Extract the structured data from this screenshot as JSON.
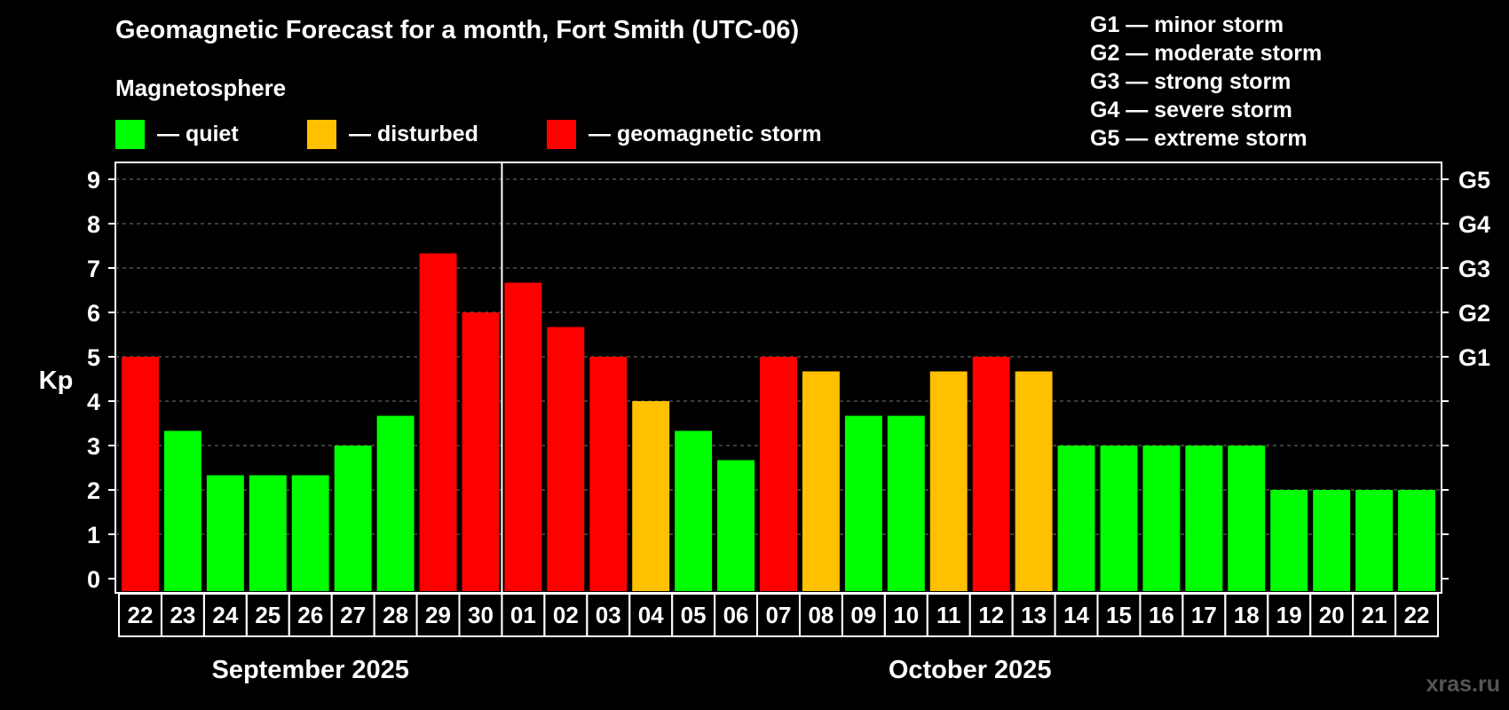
{
  "legend": {
    "heading": "Magnetosphere",
    "items": [
      {
        "label": "— quiet",
        "color": "#00ff00"
      },
      {
        "label": "— disturbed",
        "color": "#ffc000"
      },
      {
        "label": "— geomagnetic storm",
        "color": "#ff0000"
      }
    ]
  },
  "g_legend": [
    "G1 — minor storm",
    "G2 — moderate storm",
    "G3 — strong storm",
    "G4 — severe storm",
    "G5 — extreme storm"
  ],
  "watermark": "xras.ru",
  "chart_data": {
    "type": "bar",
    "title": "Geomagnetic Forecast for a month, Fort Smith (UTC-06)",
    "ylabel": "Kp",
    "ylim": [
      0,
      9
    ],
    "yticks": [
      0,
      1,
      2,
      3,
      4,
      5,
      6,
      7,
      8,
      9
    ],
    "right_axis_labels": [
      {
        "kp": 5,
        "label": "G1"
      },
      {
        "kp": 6,
        "label": "G2"
      },
      {
        "kp": 7,
        "label": "G3"
      },
      {
        "kp": 8,
        "label": "G4"
      },
      {
        "kp": 9,
        "label": "G5"
      }
    ],
    "categories": [
      "22",
      "23",
      "24",
      "25",
      "26",
      "27",
      "28",
      "29",
      "30",
      "01",
      "02",
      "03",
      "04",
      "05",
      "06",
      "07",
      "08",
      "09",
      "10",
      "11",
      "12",
      "13",
      "14",
      "15",
      "16",
      "17",
      "18",
      "19",
      "20",
      "21",
      "22"
    ],
    "values": [
      5,
      3.33,
      2.33,
      2.33,
      2.33,
      3,
      3.67,
      7.33,
      6,
      6.67,
      5.67,
      5,
      4,
      3.33,
      2.67,
      5,
      4.67,
      3.67,
      3.67,
      4.67,
      5,
      4.67,
      3,
      3,
      3,
      3,
      3,
      2,
      2,
      2,
      2
    ],
    "colors": [
      "#ff0000",
      "#00ff00",
      "#00ff00",
      "#00ff00",
      "#00ff00",
      "#00ff00",
      "#00ff00",
      "#ff0000",
      "#ff0000",
      "#ff0000",
      "#ff0000",
      "#ff0000",
      "#ffc000",
      "#00ff00",
      "#00ff00",
      "#ff0000",
      "#ffc000",
      "#00ff00",
      "#00ff00",
      "#ffc000",
      "#ff0000",
      "#ffc000",
      "#00ff00",
      "#00ff00",
      "#00ff00",
      "#00ff00",
      "#00ff00",
      "#00ff00",
      "#00ff00",
      "#00ff00",
      "#00ff00"
    ],
    "months": [
      {
        "label": "September 2025",
        "start_index": 0,
        "end_index": 8
      },
      {
        "label": "October 2025",
        "start_index": 9,
        "end_index": 30
      }
    ]
  }
}
